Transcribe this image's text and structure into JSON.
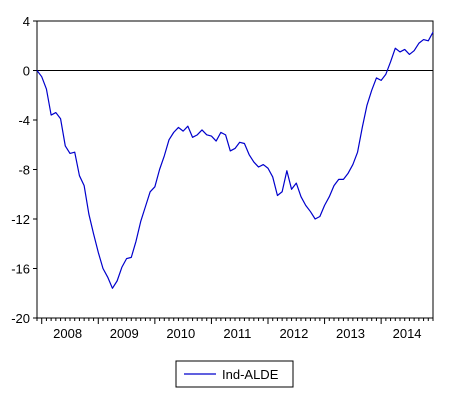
{
  "chart_data": {
    "type": "line",
    "title": "",
    "xlabel": "",
    "ylabel": "",
    "xlim": [
      "2007-12",
      "2014-12"
    ],
    "ylim": [
      -20,
      4
    ],
    "y_ticks": [
      4,
      0,
      -4,
      -8,
      -12,
      -16,
      -20
    ],
    "x_tick_labels": [
      "2008",
      "2009",
      "2010",
      "2011",
      "2012",
      "2013",
      "2014"
    ],
    "zero_line": true,
    "grid": false,
    "legend_position": "bottom-center",
    "series": [
      {
        "name": "Ind-ALDE",
        "color": "#0000cc",
        "points": [
          [
            "2007-12",
            0.0
          ],
          [
            "2008-01",
            -0.5
          ],
          [
            "2008-02",
            -1.5
          ],
          [
            "2008-03",
            -3.6
          ],
          [
            "2008-04",
            -3.4
          ],
          [
            "2008-05",
            -3.9
          ],
          [
            "2008-06",
            -6.1
          ],
          [
            "2008-07",
            -6.7
          ],
          [
            "2008-08",
            -6.6
          ],
          [
            "2008-09",
            -8.5
          ],
          [
            "2008-10",
            -9.3
          ],
          [
            "2008-11",
            -11.6
          ],
          [
            "2008-12",
            -13.2
          ],
          [
            "2009-01",
            -14.7
          ],
          [
            "2009-02",
            -16.0
          ],
          [
            "2009-03",
            -16.7
          ],
          [
            "2009-04",
            -17.6
          ],
          [
            "2009-05",
            -17.0
          ],
          [
            "2009-06",
            -15.9
          ],
          [
            "2009-07",
            -15.2
          ],
          [
            "2009-08",
            -15.1
          ],
          [
            "2009-09",
            -13.8
          ],
          [
            "2009-10",
            -12.2
          ],
          [
            "2009-11",
            -11.0
          ],
          [
            "2009-12",
            -9.8
          ],
          [
            "2010-01",
            -9.4
          ],
          [
            "2010-02",
            -8.0
          ],
          [
            "2010-03",
            -6.9
          ],
          [
            "2010-04",
            -5.6
          ],
          [
            "2010-05",
            -5.0
          ],
          [
            "2010-06",
            -4.6
          ],
          [
            "2010-07",
            -4.9
          ],
          [
            "2010-08",
            -4.5
          ],
          [
            "2010-09",
            -5.4
          ],
          [
            "2010-10",
            -5.2
          ],
          [
            "2010-11",
            -4.8
          ],
          [
            "2010-12",
            -5.2
          ],
          [
            "2011-01",
            -5.3
          ],
          [
            "2011-02",
            -5.7
          ],
          [
            "2011-03",
            -5.0
          ],
          [
            "2011-04",
            -5.2
          ],
          [
            "2011-05",
            -6.5
          ],
          [
            "2011-06",
            -6.3
          ],
          [
            "2011-07",
            -5.8
          ],
          [
            "2011-08",
            -5.9
          ],
          [
            "2011-09",
            -6.8
          ],
          [
            "2011-10",
            -7.4
          ],
          [
            "2011-11",
            -7.8
          ],
          [
            "2011-12",
            -7.6
          ],
          [
            "2012-01",
            -7.9
          ],
          [
            "2012-02",
            -8.6
          ],
          [
            "2012-03",
            -10.1
          ],
          [
            "2012-04",
            -9.8
          ],
          [
            "2012-05",
            -8.1
          ],
          [
            "2012-06",
            -9.6
          ],
          [
            "2012-07",
            -9.1
          ],
          [
            "2012-08",
            -10.2
          ],
          [
            "2012-09",
            -10.9
          ],
          [
            "2012-10",
            -11.4
          ],
          [
            "2012-11",
            -12.0
          ],
          [
            "2012-12",
            -11.8
          ],
          [
            "2013-01",
            -10.9
          ],
          [
            "2013-02",
            -10.2
          ],
          [
            "2013-03",
            -9.3
          ],
          [
            "2013-04",
            -8.8
          ],
          [
            "2013-05",
            -8.8
          ],
          [
            "2013-06",
            -8.3
          ],
          [
            "2013-07",
            -7.6
          ],
          [
            "2013-08",
            -6.6
          ],
          [
            "2013-09",
            -4.6
          ],
          [
            "2013-10",
            -2.8
          ],
          [
            "2013-11",
            -1.6
          ],
          [
            "2013-12",
            -0.6
          ],
          [
            "2014-01",
            -0.8
          ],
          [
            "2014-02",
            -0.3
          ],
          [
            "2014-03",
            0.7
          ],
          [
            "2014-04",
            1.8
          ],
          [
            "2014-05",
            1.5
          ],
          [
            "2014-06",
            1.7
          ],
          [
            "2014-07",
            1.3
          ],
          [
            "2014-08",
            1.6
          ],
          [
            "2014-09",
            2.2
          ],
          [
            "2014-10",
            2.5
          ],
          [
            "2014-11",
            2.4
          ],
          [
            "2014-12",
            3.1
          ]
        ]
      }
    ]
  }
}
